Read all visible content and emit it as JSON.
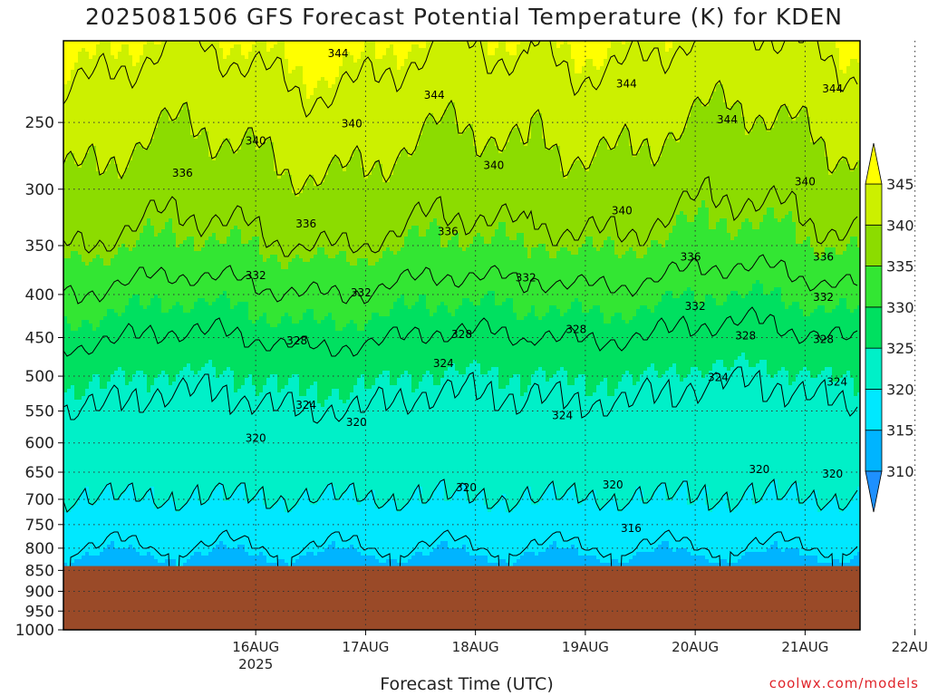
{
  "title": "2025081506 GFS Forecast Potential Temperature (K) for KDEN",
  "credit": "coolwx.com/models",
  "chart_data": {
    "type": "heatmap",
    "title": "2025081506 GFS Forecast Potential Temperature (K) for KDEN",
    "xlabel": "Forecast Time (UTC)",
    "ylabel": "",
    "y_scale": "log",
    "y_inverted": true,
    "y_ticks": [
      250,
      300,
      350,
      400,
      450,
      500,
      550,
      600,
      650,
      700,
      750,
      800,
      850,
      900,
      950,
      1000
    ],
    "ylim": [
      1000,
      200
    ],
    "x_ticks": [
      "16AUG",
      "17AUG",
      "18AUG",
      "19AUG",
      "20AUG",
      "21AUG",
      "22AUG"
    ],
    "x_tick_sublabel": "2025",
    "xlim_hours": [
      -42,
      132
    ],
    "ground_level_hpa": 840,
    "colorbar": {
      "levels": [
        310,
        315,
        320,
        325,
        330,
        335,
        340,
        345
      ],
      "labels": [
        "310",
        "315",
        "320",
        "325",
        "330",
        "335",
        "340",
        "345"
      ],
      "colors": [
        "#1e90ff",
        "#00b4ff",
        "#00e8ff",
        "#00f0c8",
        "#00e060",
        "#33e633",
        "#8cdc00",
        "#ccf000",
        "#ffff00"
      ]
    },
    "contour_levels": [
      316,
      320,
      324,
      328,
      332,
      336,
      340,
      344
    ],
    "profile_pressures_hpa": [
      840,
      800,
      750,
      700,
      650,
      600,
      550,
      500,
      450,
      400,
      350,
      300,
      250,
      200
    ],
    "mean_profile_K": [
      313,
      316,
      318,
      320,
      321,
      322,
      323.5,
      325,
      328,
      331,
      335,
      338,
      341,
      345
    ],
    "contour_labels": [
      {
        "value": "344",
        "hours": 18,
        "hpa": 207
      },
      {
        "value": "344",
        "hours": 81,
        "hpa": 225
      },
      {
        "value": "344",
        "hours": 39,
        "hpa": 232
      },
      {
        "value": "344",
        "hours": 126,
        "hpa": 228
      },
      {
        "value": "344",
        "hours": 103,
        "hpa": 248
      },
      {
        "value": "340",
        "hours": 0,
        "hpa": 263
      },
      {
        "value": "340",
        "hours": 21,
        "hpa": 251
      },
      {
        "value": "340",
        "hours": 52,
        "hpa": 281
      },
      {
        "value": "340",
        "hours": 80,
        "hpa": 318
      },
      {
        "value": "340",
        "hours": 120,
        "hpa": 294
      },
      {
        "value": "336",
        "hours": -16,
        "hpa": 287
      },
      {
        "value": "336",
        "hours": 11,
        "hpa": 330
      },
      {
        "value": "336",
        "hours": 42,
        "hpa": 337
      },
      {
        "value": "336",
        "hours": 95,
        "hpa": 361
      },
      {
        "value": "336",
        "hours": 124,
        "hpa": 361
      },
      {
        "value": "332",
        "hours": 0,
        "hpa": 380
      },
      {
        "value": "332",
        "hours": 23,
        "hpa": 398
      },
      {
        "value": "332",
        "hours": 59,
        "hpa": 382
      },
      {
        "value": "332",
        "hours": 96,
        "hpa": 413
      },
      {
        "value": "332",
        "hours": 124,
        "hpa": 403
      },
      {
        "value": "328",
        "hours": 9,
        "hpa": 454
      },
      {
        "value": "328",
        "hours": 45,
        "hpa": 446
      },
      {
        "value": "328",
        "hours": 70,
        "hpa": 440
      },
      {
        "value": "328",
        "hours": 107,
        "hpa": 448
      },
      {
        "value": "328",
        "hours": 124,
        "hpa": 452
      },
      {
        "value": "324",
        "hours": 41,
        "hpa": 483
      },
      {
        "value": "324",
        "hours": 11,
        "hpa": 541
      },
      {
        "value": "324",
        "hours": 67,
        "hpa": 557
      },
      {
        "value": "324",
        "hours": 101,
        "hpa": 502
      },
      {
        "value": "324",
        "hours": 127,
        "hpa": 508
      },
      {
        "value": "320",
        "hours": 22,
        "hpa": 567
      },
      {
        "value": "320",
        "hours": 0,
        "hpa": 592
      },
      {
        "value": "320",
        "hours": 46,
        "hpa": 678
      },
      {
        "value": "320",
        "hours": 78,
        "hpa": 673
      },
      {
        "value": "320",
        "hours": 110,
        "hpa": 645
      },
      {
        "value": "320",
        "hours": 126,
        "hpa": 653
      },
      {
        "value": "316",
        "hours": 82,
        "hpa": 758
      }
    ]
  }
}
